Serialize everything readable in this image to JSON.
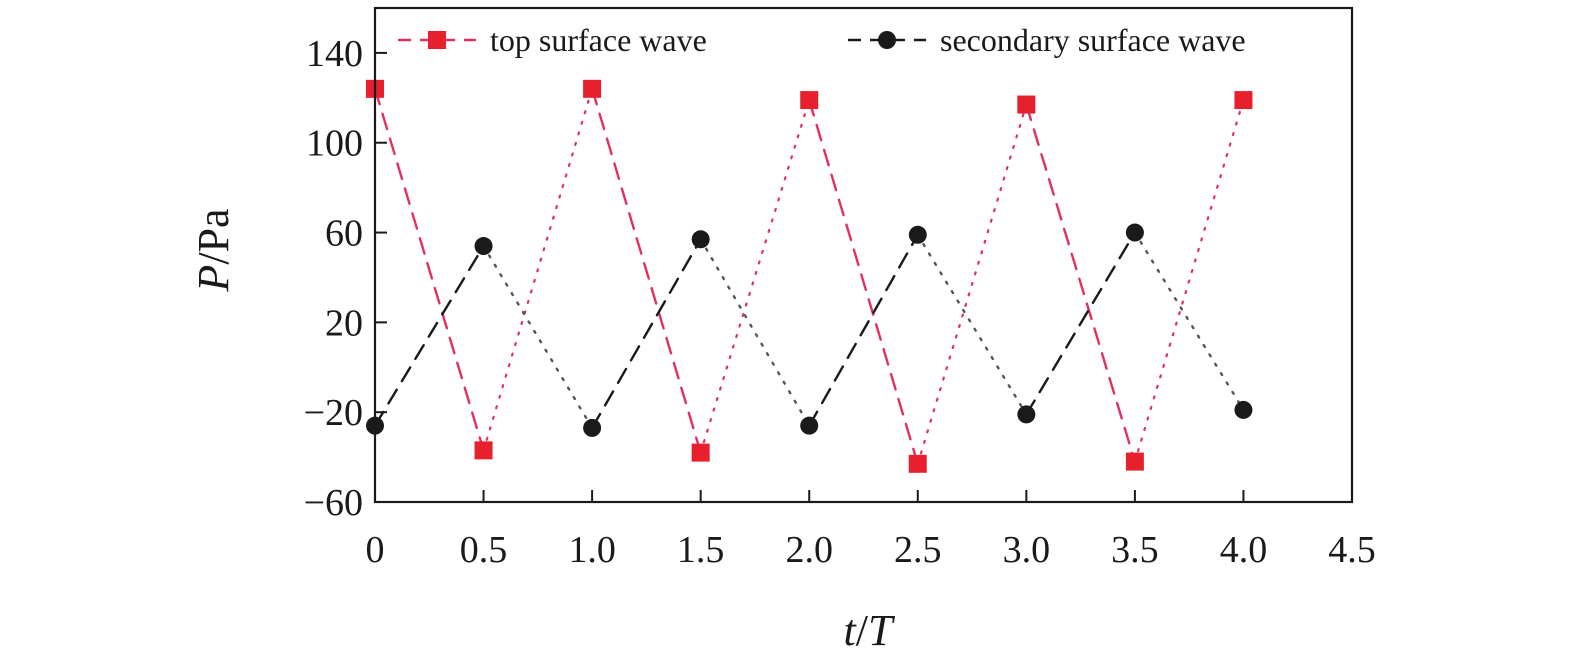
{
  "chart_data": {
    "type": "line",
    "xlabel_var": "t",
    "xlabel_unit": "T",
    "ylabel_var": "P",
    "ylabel_unit": "Pa",
    "xlim": [
      0,
      4.5
    ],
    "ylim": [
      -60,
      160
    ],
    "xticks": [
      0,
      0.5,
      1.0,
      1.5,
      2.0,
      2.5,
      3.0,
      3.5,
      4.0,
      4.5
    ],
    "xtick_labels": [
      "0",
      "0.5",
      "1.0",
      "1.5",
      "2.0",
      "2.5",
      "3.0",
      "3.5",
      "4.0",
      "4.5"
    ],
    "yticks": [
      -60,
      -20,
      20,
      60,
      100,
      140
    ],
    "ytick_labels": [
      "−60",
      "−20",
      "20",
      "60",
      "100",
      "140"
    ],
    "grid": false,
    "legend_position": "top",
    "x": [
      0,
      0.5,
      1.0,
      1.5,
      2.0,
      2.5,
      3.0,
      3.5,
      4.0
    ],
    "series": [
      {
        "name": "top surface wave",
        "marker": "square",
        "color": "#e8202e",
        "values": [
          124,
          -37,
          124,
          -38,
          119,
          -43,
          117,
          -42,
          119
        ]
      },
      {
        "name": "secondary surface wave",
        "marker": "circle",
        "color": "#1a1a1a",
        "values": [
          -26,
          54,
          -27,
          57,
          -26,
          59,
          -21,
          60,
          -19
        ]
      }
    ]
  }
}
